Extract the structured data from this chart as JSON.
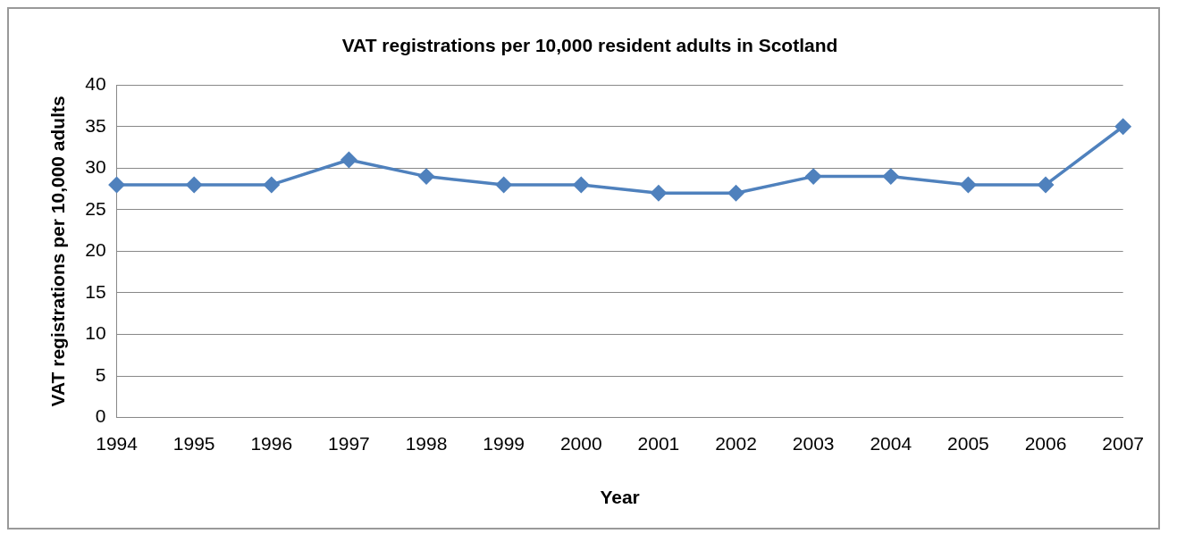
{
  "chart_data": {
    "type": "line",
    "title": "VAT registrations per 10,000 resident adults in Scotland",
    "xlabel": "Year",
    "ylabel": "VAT registrations per 10,000 adults",
    "categories": [
      "1994",
      "1995",
      "1996",
      "1997",
      "1998",
      "1999",
      "2000",
      "2001",
      "2002",
      "2003",
      "2004",
      "2005",
      "2006",
      "2007"
    ],
    "series": [
      {
        "color": "#4f81bd",
        "values": [
          28,
          28,
          28,
          31,
          29,
          28,
          28,
          27,
          27,
          29,
          29,
          28,
          28,
          35
        ]
      }
    ],
    "ylim": [
      0,
      40
    ],
    "yticks": [
      0,
      5,
      10,
      15,
      20,
      25,
      30,
      35,
      40
    ],
    "grid": "y",
    "legend": false,
    "marker": "diamond",
    "line_style": "solid"
  }
}
